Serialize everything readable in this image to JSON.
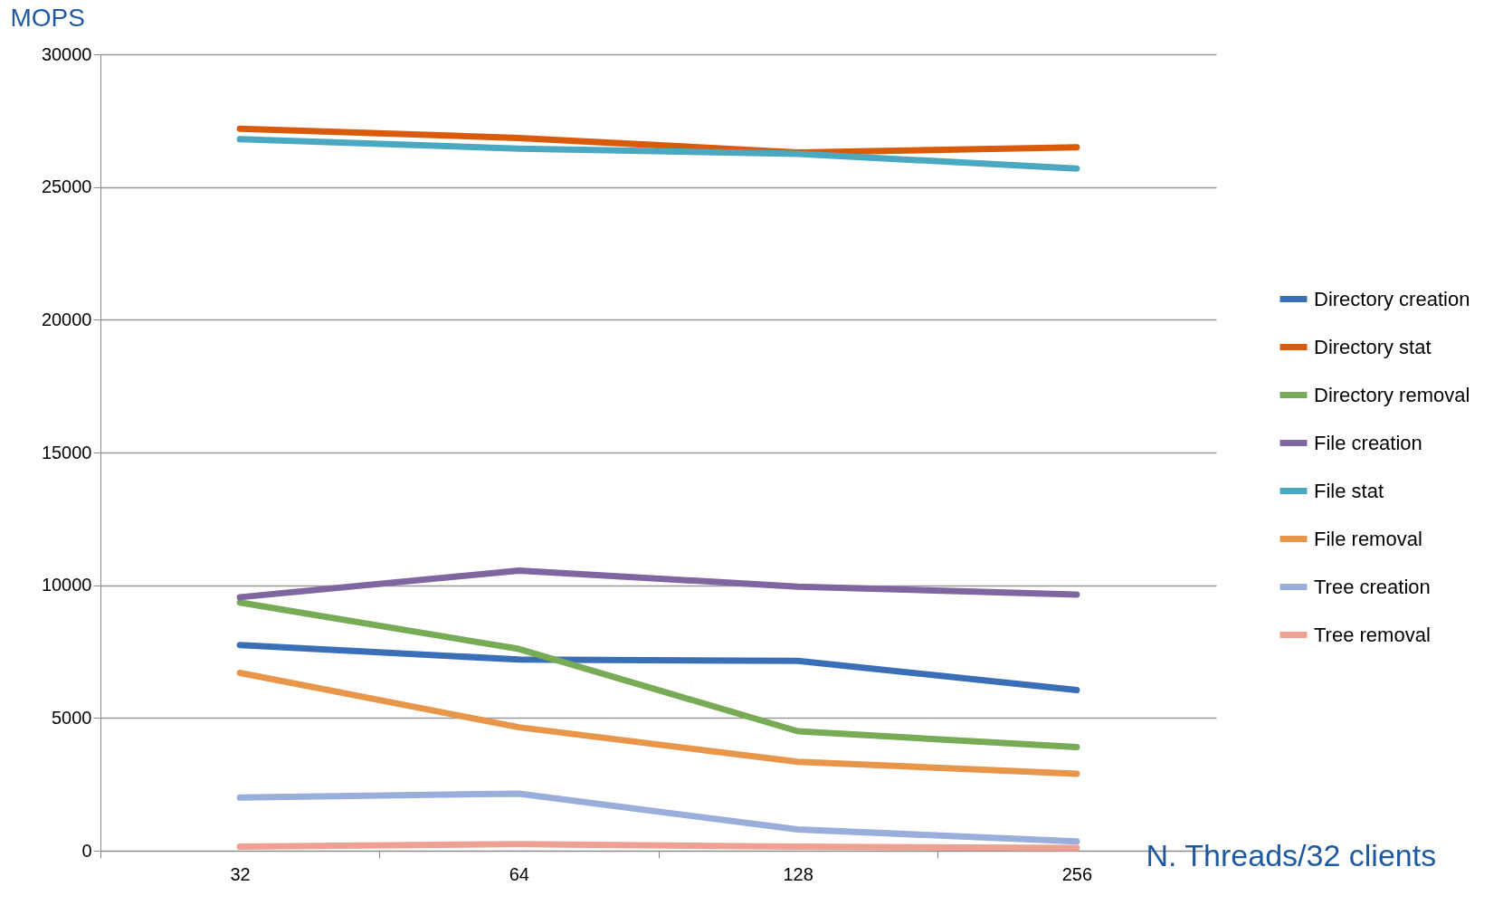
{
  "chart_data": {
    "type": "line",
    "ylabel": "MOPS",
    "xlabel": "N. Threads/32 clients",
    "categories": [
      "32",
      "64",
      "128",
      "256"
    ],
    "ylim": [
      0,
      30000
    ],
    "yticks": [
      0,
      5000,
      10000,
      15000,
      20000,
      25000,
      30000
    ],
    "grid": "y",
    "legend": "right",
    "marker": "none",
    "line_style": "solid",
    "series": [
      {
        "name": "Directory creation",
        "color": "#3a6fb7",
        "values": [
          7750,
          7200,
          7150,
          6050
        ]
      },
      {
        "name": "Directory stat",
        "color": "#d95b0a",
        "values": [
          27200,
          26850,
          26300,
          26500
        ]
      },
      {
        "name": "Directory removal",
        "color": "#77ab55",
        "values": [
          9350,
          7600,
          4500,
          3900
        ]
      },
      {
        "name": "File creation",
        "color": "#8066a0",
        "values": [
          9550,
          10550,
          9950,
          9650
        ]
      },
      {
        "name": "File stat",
        "color": "#4aa8c0",
        "values": [
          26800,
          26450,
          26250,
          25700
        ]
      },
      {
        "name": "File removal",
        "color": "#e8964a",
        "values": [
          6700,
          4650,
          3350,
          2900
        ]
      },
      {
        "name": "Tree creation",
        "color": "#9aaedb",
        "values": [
          2000,
          2150,
          800,
          350
        ]
      },
      {
        "name": "Tree removal",
        "color": "#eea193",
        "values": [
          150,
          250,
          150,
          100
        ]
      }
    ]
  }
}
